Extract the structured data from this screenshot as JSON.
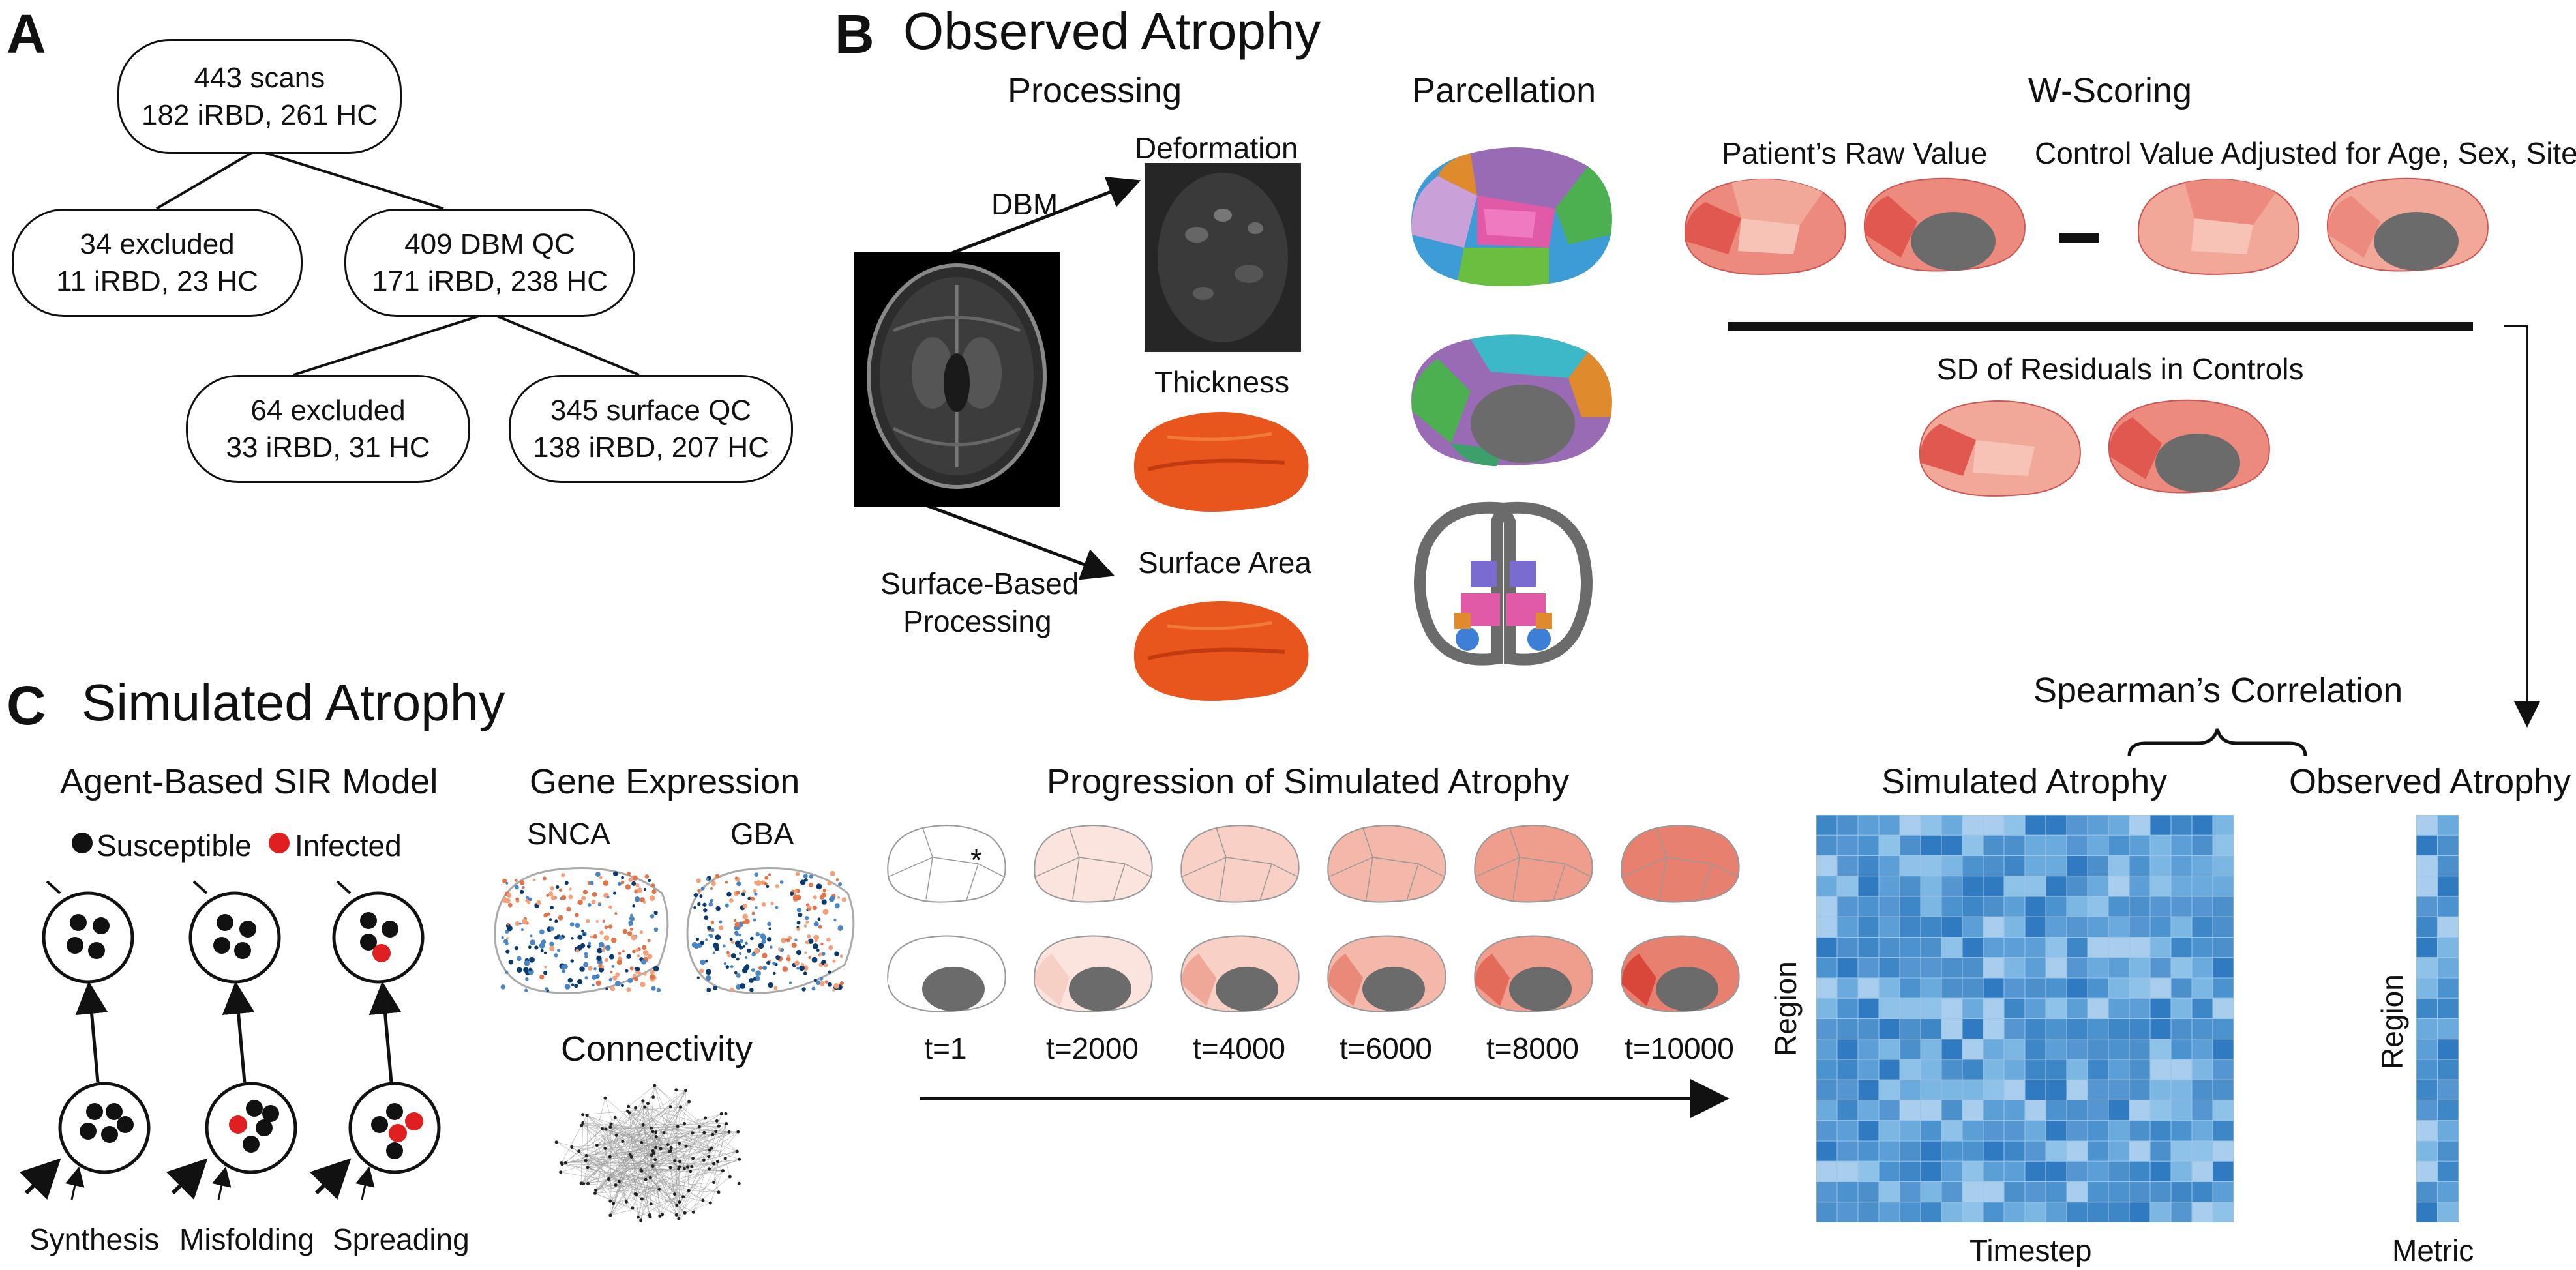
{
  "panel_a": {
    "label": "A",
    "boxes": [
      {
        "line1": "443 scans",
        "line2": "182 iRBD, 261 HC"
      },
      {
        "line1": "34 excluded",
        "line2": "11 iRBD, 23 HC"
      },
      {
        "line1": "409 DBM QC",
        "line2": "171 iRBD, 238 HC"
      },
      {
        "line1": "64 excluded",
        "line2": "33 iRBD, 31 HC"
      },
      {
        "line1": "345 surface QC",
        "line2": "138 iRBD, 207 HC"
      }
    ]
  },
  "panel_b": {
    "label": "B",
    "title": "Observed Atrophy",
    "processing": "Processing",
    "dbm": "DBM",
    "surface_based": "Surface-Based",
    "surface_processing": "Processing",
    "deformation": "Deformation",
    "thickness": "Thickness",
    "surface_area": "Surface Area",
    "parcellation": "Parcellation",
    "w_scoring": "W-Scoring",
    "patient_raw": "Patient’s Raw Value",
    "control_adjusted": "Control Value Adjusted for Age, Sex, Site",
    "sd_residuals": "SD of Residuals in Controls"
  },
  "panel_c": {
    "label": "C",
    "title": "Simulated Atrophy",
    "sir_title": "Agent-Based SIR Model",
    "susceptible": "Susceptible",
    "infected": "Infected",
    "synthesis": "Synthesis",
    "misfolding": "Misfolding",
    "spreading": "Spreading",
    "gene_expression": "Gene Expression",
    "snca": "SNCA",
    "gba": "GBA",
    "connectivity": "Connectivity",
    "progression": "Progression of Simulated Atrophy",
    "asterisk": "*",
    "timesteps": [
      "t=1",
      "t=2000",
      "t=4000",
      "t=6000",
      "t=8000",
      "t=10000"
    ],
    "spearman": "Spearman’s Correlation",
    "simulated_atrophy": "Simulated Atrophy",
    "observed_atrophy": "Observed Atrophy",
    "region": "Region",
    "timestep": "Timestep",
    "metric": "Metric"
  },
  "colors": {
    "heatmap_base": "#5b9fd6",
    "heatmap_dark": "#1f6fb5",
    "heatmap_light": "#a9cdec",
    "atrophy_red": "#e0584f",
    "atrophy_pink": "#f6b9ad",
    "cortex_orange": "#e8561d",
    "mri_black": "#000000",
    "gray_medial": "#6b6b6b",
    "infected_red": "#e02020"
  }
}
